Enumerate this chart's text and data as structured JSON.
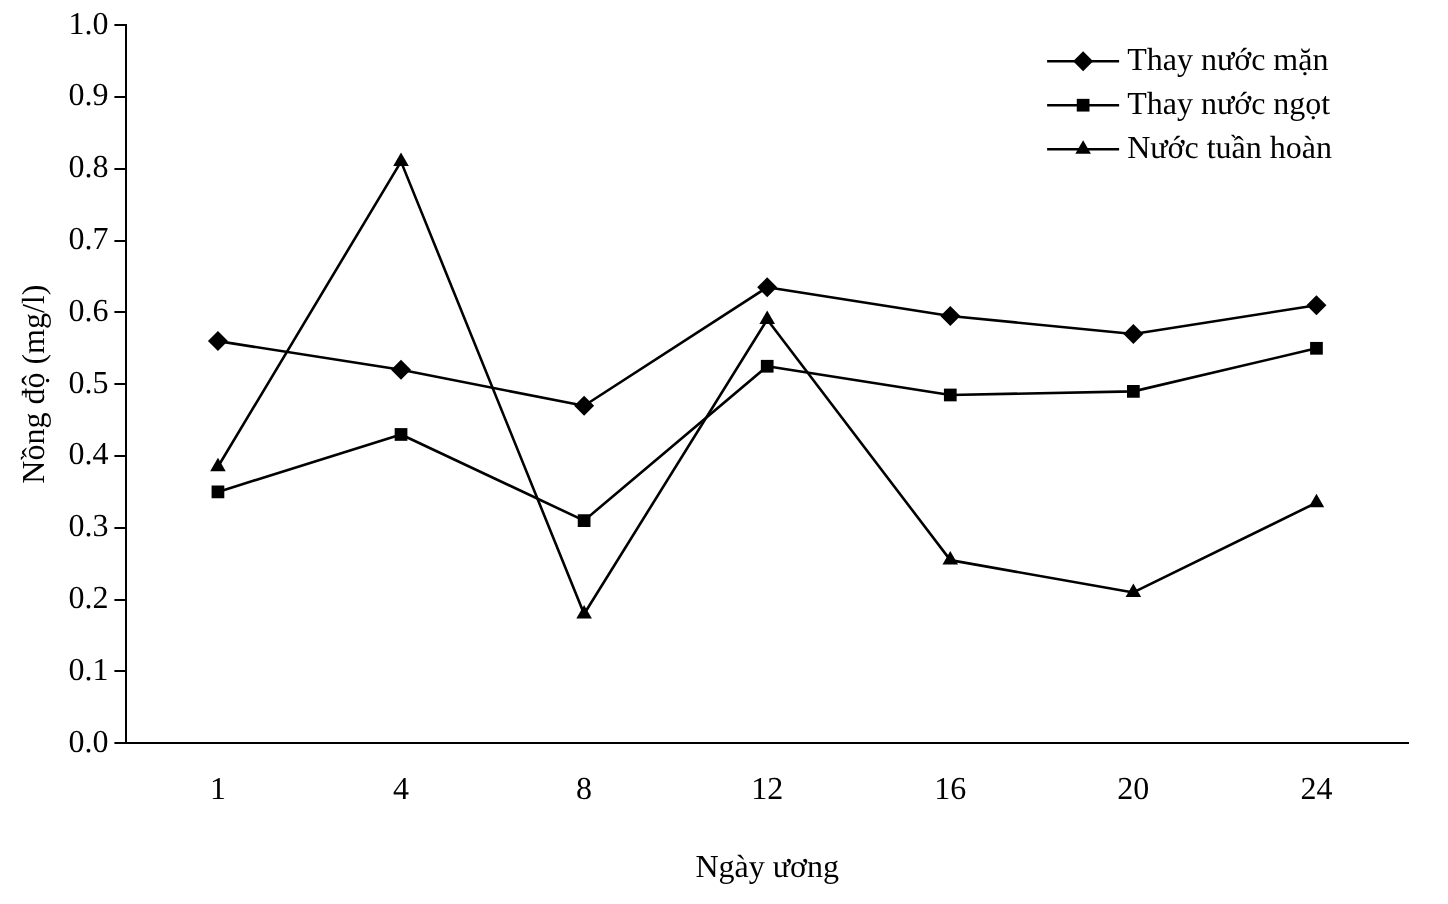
{
  "chart_data": {
    "type": "line",
    "xlabel": "Ngày ương",
    "ylabel": "Nồng độ (mg/l)",
    "categories": [
      "1",
      "4",
      "8",
      "12",
      "16",
      "20",
      "24"
    ],
    "series": [
      {
        "name": "Thay nước mặn",
        "color": "#000000",
        "marker": "diamond",
        "values": [
          0.56,
          0.52,
          0.47,
          0.635,
          0.595,
          0.57,
          0.61
        ]
      },
      {
        "name": "Thay nước ngọt",
        "color": "#000000",
        "marker": "square",
        "values": [
          0.35,
          0.43,
          0.31,
          0.525,
          0.485,
          0.49,
          0.55
        ]
      },
      {
        "name": "Nước tuần hoàn",
        "color": "#000000",
        "marker": "triangle",
        "values": [
          0.385,
          0.81,
          0.18,
          0.59,
          0.255,
          0.21,
          0.335
        ]
      }
    ],
    "ylim": [
      0,
      1
    ],
    "yticks": [
      {
        "value": 0,
        "label": "0.0"
      },
      0.1,
      0.2,
      0.3,
      0.4,
      0.5,
      0.6,
      0.7,
      0.8,
      0.9,
      {
        "value": 1,
        "label": "1.0"
      }
    ],
    "grid": false,
    "legend": "top right",
    "line_style": "solid"
  }
}
